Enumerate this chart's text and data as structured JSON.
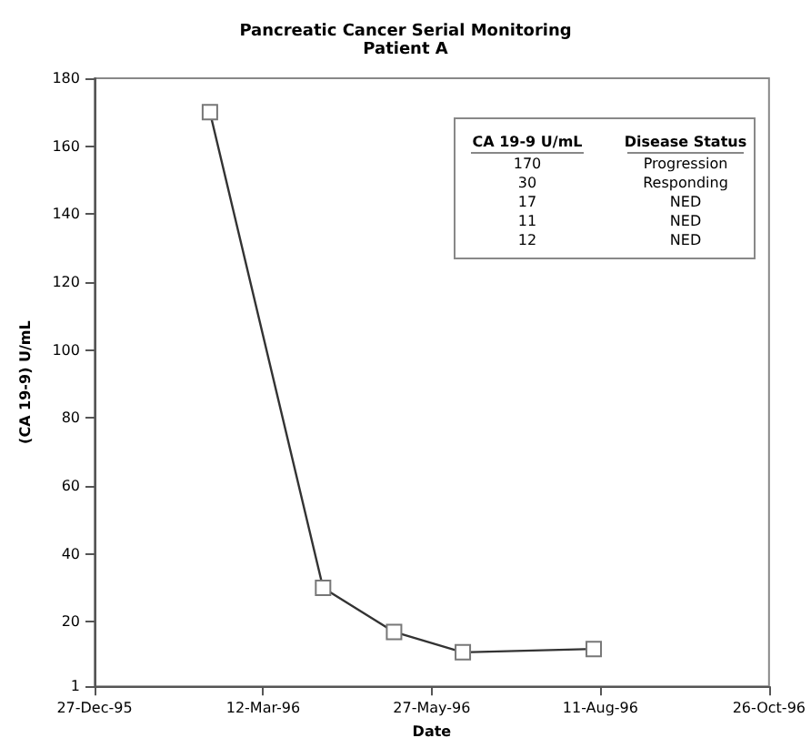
{
  "chart_data": {
    "type": "line",
    "title": "Pancreatic Cancer Serial Monitoring",
    "subtitle": "Patient A",
    "xlabel": "Date",
    "ylabel": "(CA 19-9) U/mL",
    "x": [
      "1996-02-17",
      "1996-04-08",
      "1996-05-10",
      "1996-06-10",
      "1996-08-08"
    ],
    "series": [
      {
        "color": "#333333",
        "values": [
          170,
          30,
          17,
          11,
          12
        ]
      }
    ],
    "xlim": [
      "1995-12-27",
      "1996-10-26"
    ],
    "xticks": [
      {
        "value": "1995-12-27",
        "label": "27-Dec-95"
      },
      {
        "value": "1996-03-12",
        "label": "12-Mar-96"
      },
      {
        "value": "1996-05-27",
        "label": "27-May-96"
      },
      {
        "value": "1996-08-11",
        "label": "11-Aug-96"
      },
      {
        "value": "1996-10-26",
        "label": "26-Oct-96"
      }
    ],
    "ylim": [
      1,
      180
    ],
    "yticks": [
      1,
      20,
      40,
      60,
      80,
      100,
      120,
      140,
      160,
      180
    ],
    "annotations": [
      "CA 19-9 U/mL",
      "Disease Status",
      "170",
      "Progression",
      "30",
      "Responding",
      "17",
      "NED",
      "11",
      "NED",
      "12",
      "NED"
    ],
    "grid": false,
    "marker": "square",
    "line_style": "solid"
  }
}
